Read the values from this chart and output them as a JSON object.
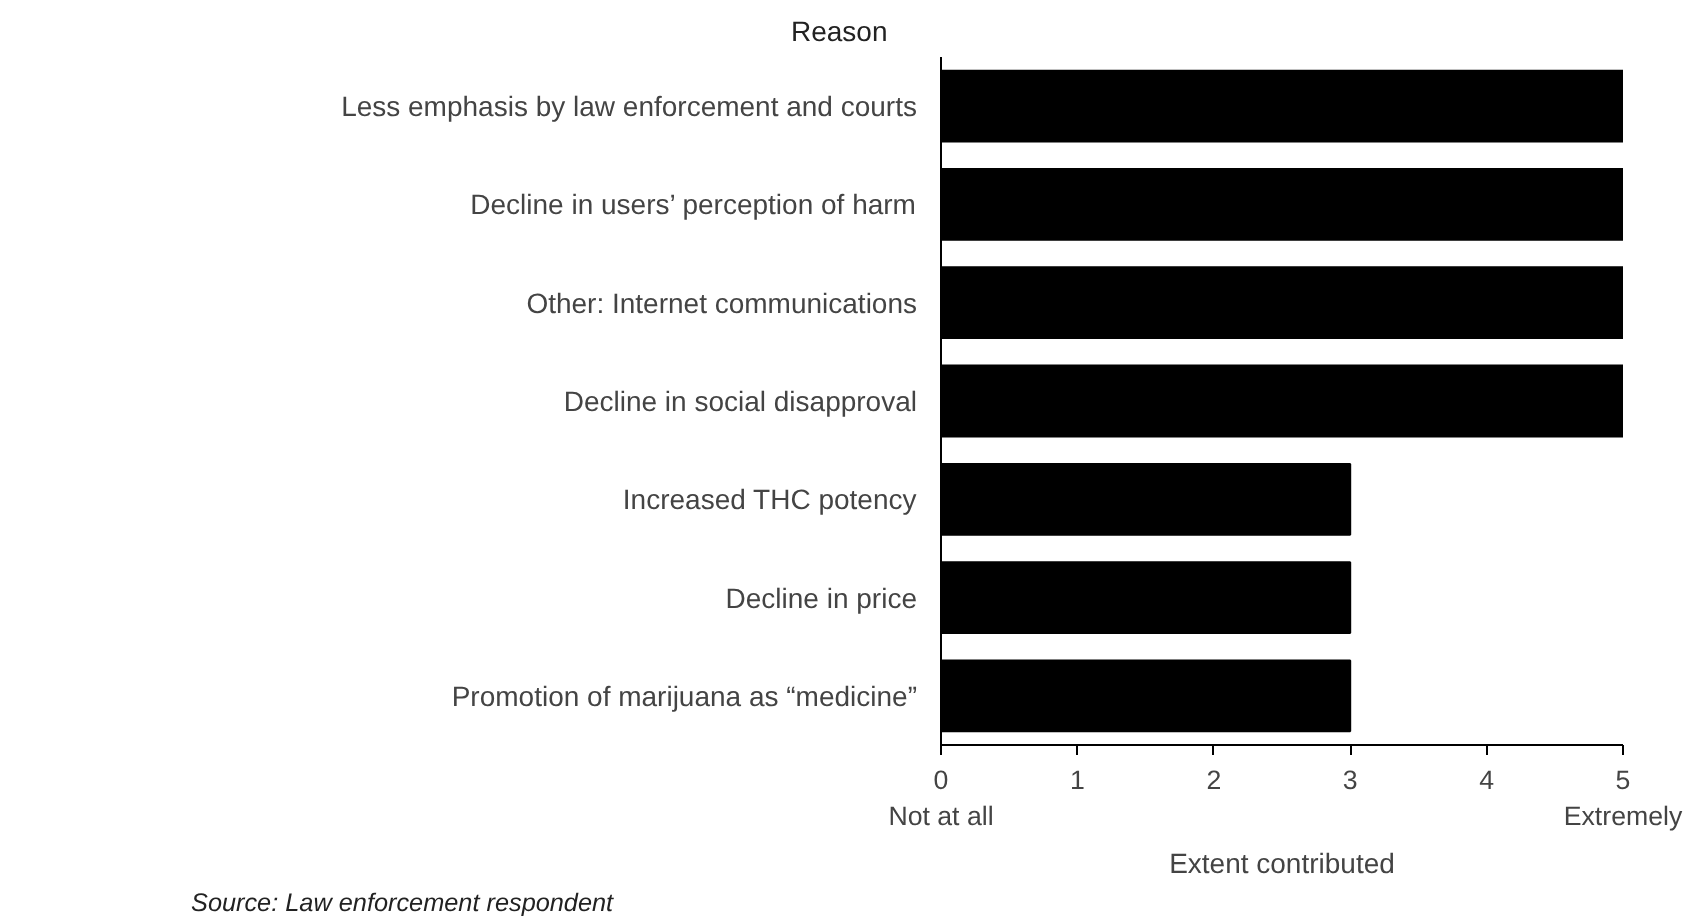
{
  "chart_data": {
    "type": "bar",
    "orientation": "horizontal",
    "ylabel": "Reason",
    "xlabel": "Extent contributed",
    "categories": [
      "Less emphasis by law enforcement and courts",
      "Decline in users’ perception of harm",
      "Other: Internet communications",
      "Decline in social disapproval",
      "Increased THC potency",
      "Decline in price",
      "Promotion of marijuana as “medicine”"
    ],
    "values": [
      5,
      5,
      5,
      5,
      3,
      3,
      3
    ],
    "color": "#000000",
    "xlim": [
      0,
      5
    ],
    "xticks": [
      {
        "value": 0,
        "label": "0\nNot at all"
      },
      1,
      2,
      3,
      4,
      {
        "value": 5,
        "label": "5\nExtremely"
      }
    ],
    "annotations": [
      "Source: Law enforcement respondent"
    ],
    "grid": false
  }
}
